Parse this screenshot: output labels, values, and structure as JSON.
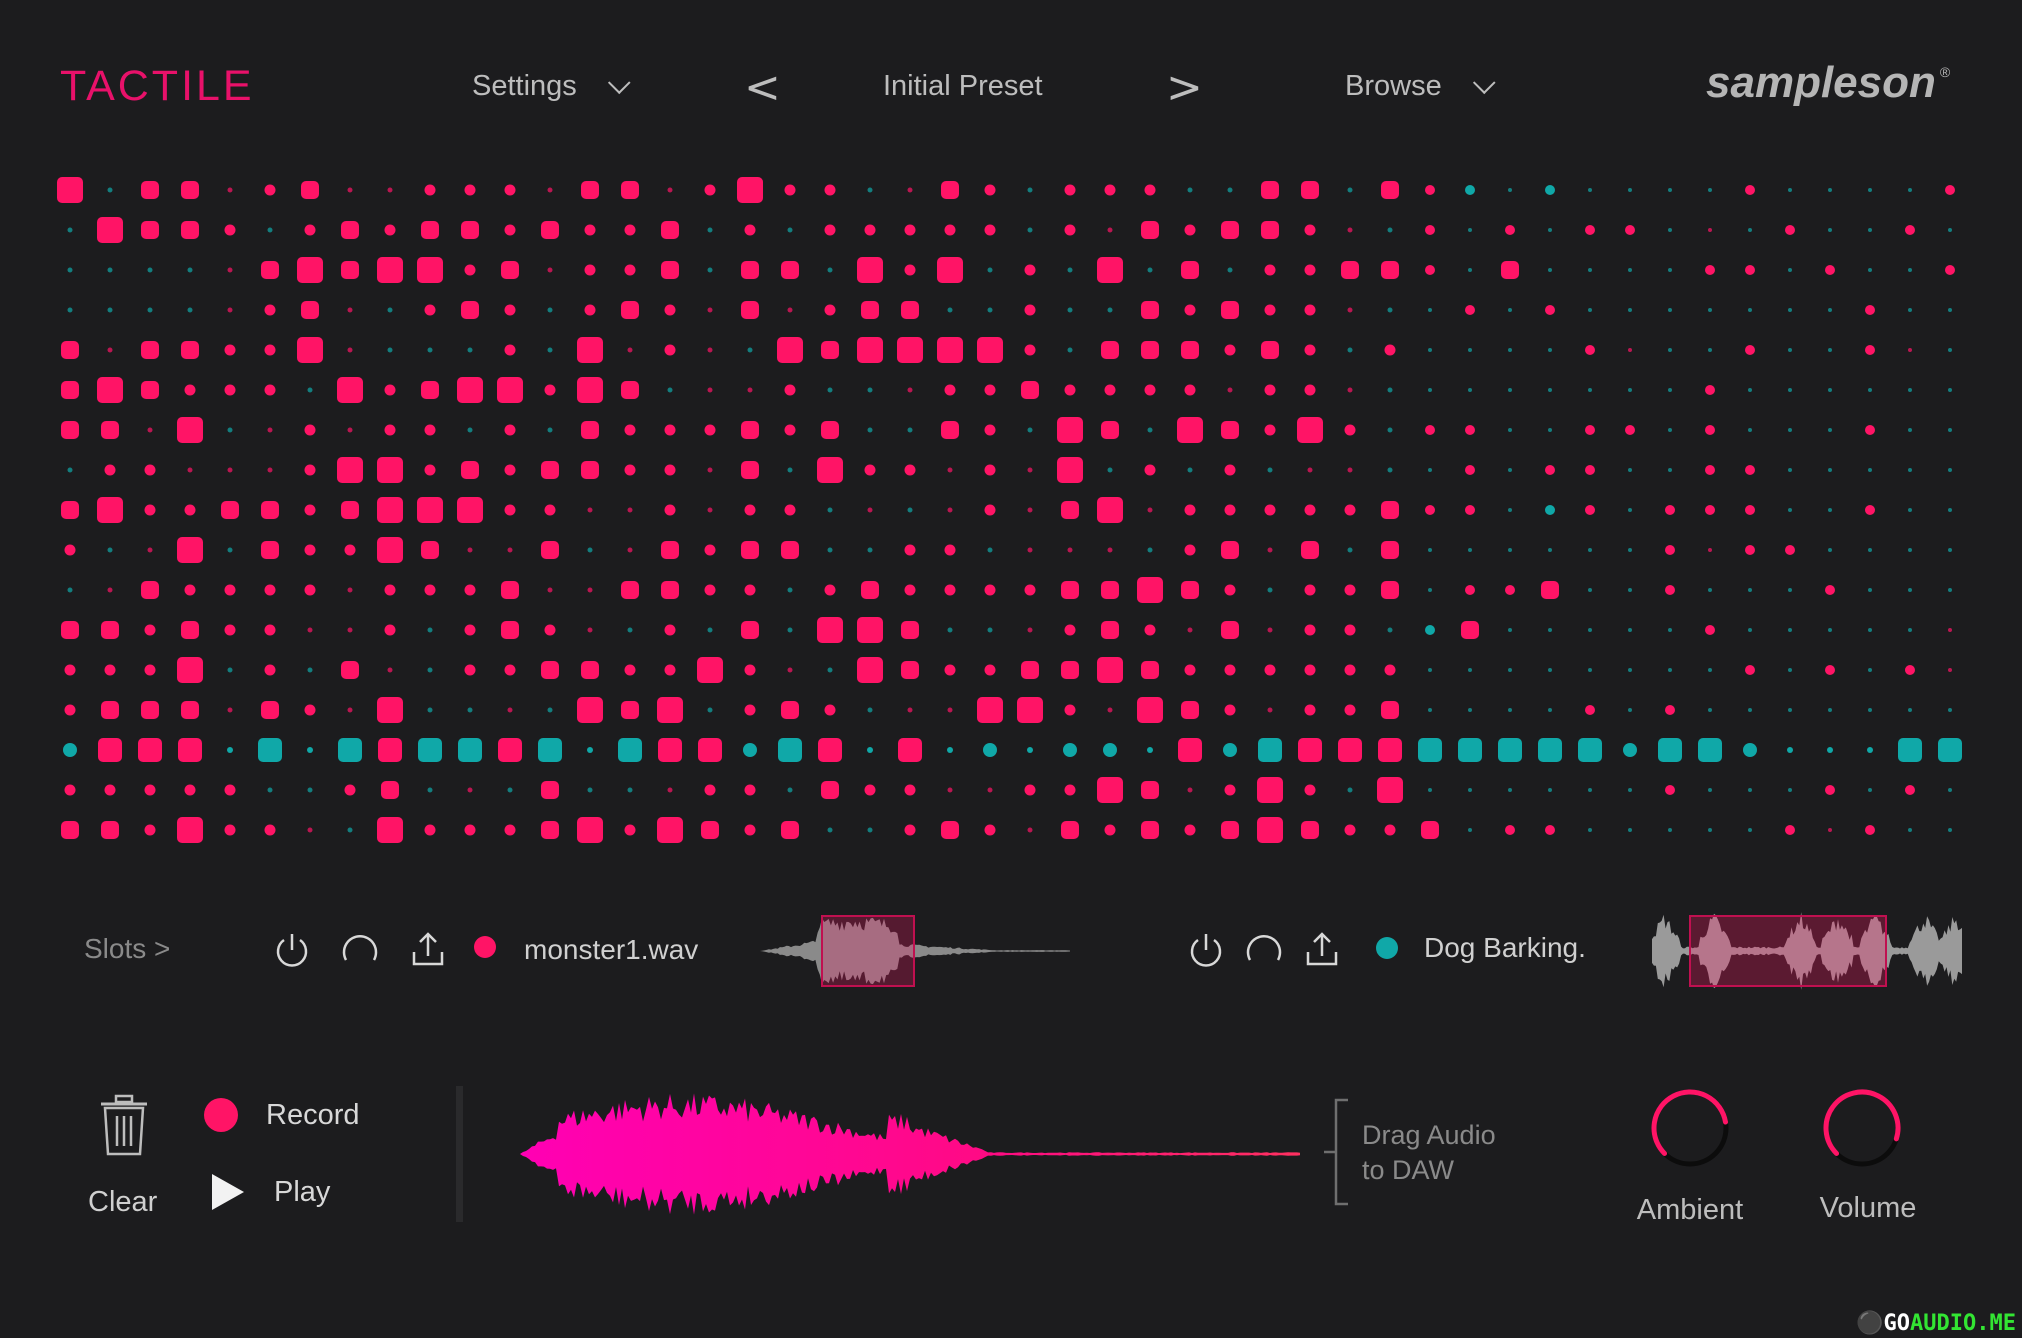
{
  "header": {
    "title": "TACTILE",
    "settings_label": "Settings",
    "prev_preset": "<",
    "preset_name": "Initial Preset",
    "next_preset": ">",
    "browse_label": "Browse",
    "brand": "sampleson",
    "brand_mark": "®"
  },
  "colors": {
    "background": "#1c1c1e",
    "accent_pink": "#ff1466",
    "accent_teal": "#10a8a8",
    "text": "#c8c8c8"
  },
  "slots": {
    "label": "Slots >",
    "slot1": {
      "name": "monster1.wav",
      "color": "#ff1466",
      "icons": [
        "power-icon",
        "loop-icon",
        "export-icon"
      ]
    },
    "slot2": {
      "name": "Dog Barking.",
      "color": "#10a8a8",
      "icons": [
        "power-icon",
        "loop-icon",
        "export-icon"
      ]
    }
  },
  "transport": {
    "clear_label": "Clear",
    "record_label": "Record",
    "play_label": "Play",
    "drag_line1": "Drag Audio",
    "drag_line2": "to DAW"
  },
  "knobs": [
    {
      "label": "Ambient",
      "value": 0.35
    },
    {
      "label": "Volume",
      "value": 0.25
    }
  ],
  "watermark": {
    "prefix": "GO",
    "suffix": "AUDIO.ME"
  }
}
